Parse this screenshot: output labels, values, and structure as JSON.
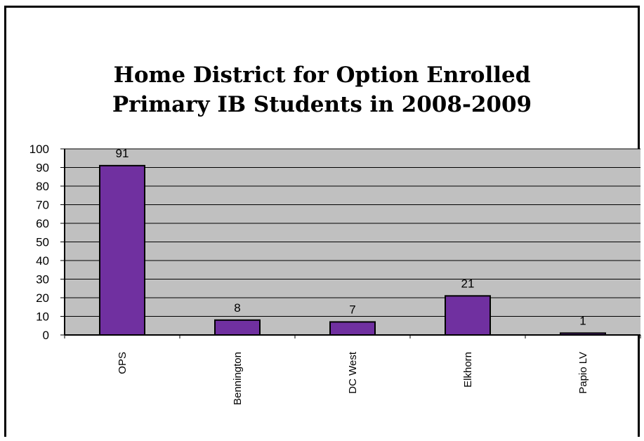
{
  "chart_data": {
    "type": "bar",
    "title": "Home District for Option Enrolled\nPrimary IB Students in 2008-2009",
    "xlabel": "",
    "ylabel": "",
    "categories": [
      "OPS",
      "Bennington",
      "DC West",
      "Elkhorn",
      "Papio LV"
    ],
    "values": [
      91,
      8,
      7,
      21,
      1
    ],
    "data_labels": [
      "91",
      "8",
      "7",
      "21",
      "1"
    ],
    "ylim": [
      0,
      100
    ],
    "yticks": [
      "0",
      "10",
      "20",
      "30",
      "40",
      "50",
      "60",
      "70",
      "80",
      "90",
      "100"
    ],
    "grid": true,
    "legend": "none",
    "colors": {
      "bar": "#7030a0",
      "plot_background": "#c0c0c0",
      "gridline": "#000000"
    }
  }
}
